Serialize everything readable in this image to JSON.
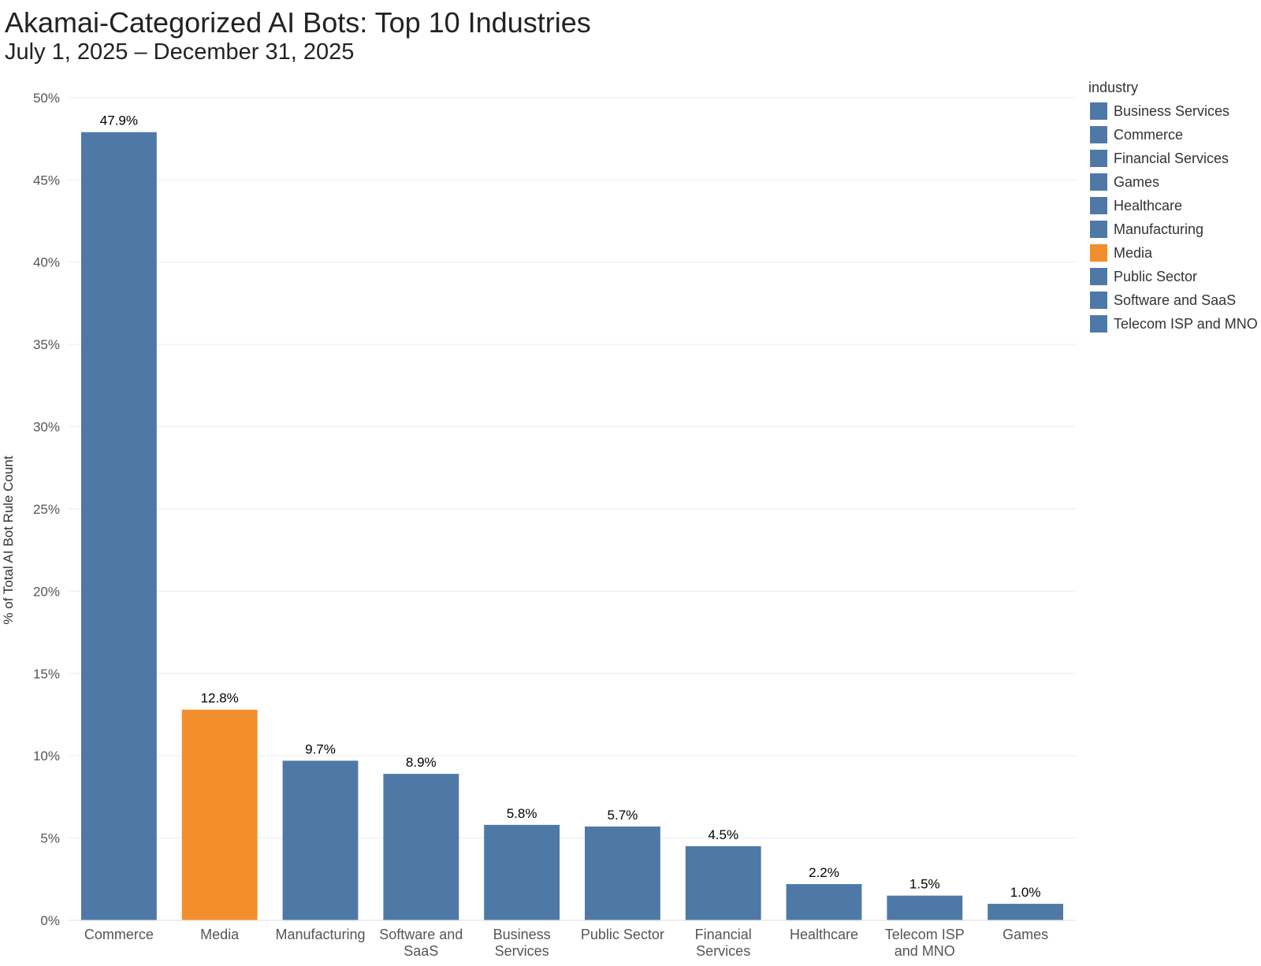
{
  "header": {
    "title": "Akamai-Categorized AI Bots: Top 10 Industries",
    "subtitle": "July 1, 2025 – December 31, 2025"
  },
  "colors": {
    "default": "#4e79a7",
    "highlight": "#f28e2b",
    "grid": "#ececec",
    "label": "#000000",
    "tick": "#555555"
  },
  "legend": {
    "title": "industry",
    "items": [
      {
        "label": "Business Services",
        "color": "#4e79a7"
      },
      {
        "label": "Commerce",
        "color": "#4e79a7"
      },
      {
        "label": "Financial Services",
        "color": "#4e79a7"
      },
      {
        "label": "Games",
        "color": "#4e79a7"
      },
      {
        "label": "Healthcare",
        "color": "#4e79a7"
      },
      {
        "label": "Manufacturing",
        "color": "#4e79a7"
      },
      {
        "label": "Media",
        "color": "#f28e2b"
      },
      {
        "label": "Public Sector",
        "color": "#4e79a7"
      },
      {
        "label": "Software and SaaS",
        "color": "#4e79a7"
      },
      {
        "label": "Telecom ISP and MNO",
        "color": "#4e79a7"
      }
    ]
  },
  "chart_data": {
    "type": "bar",
    "title": "Akamai-Categorized AI Bots: Top 10 Industries",
    "subtitle": "July 1, 2025 – December 31, 2025",
    "xlabel": "",
    "ylabel": "% of Total AI Bot Rule Count",
    "ylim": [
      0,
      51
    ],
    "yticks": [
      0,
      5,
      10,
      15,
      20,
      25,
      30,
      35,
      40,
      45,
      50
    ],
    "ytick_labels": [
      "0%",
      "5%",
      "10%",
      "15%",
      "20%",
      "25%",
      "30%",
      "35%",
      "40%",
      "45%",
      "50%"
    ],
    "grid": true,
    "legend_position": "right",
    "categories": [
      [
        "Commerce"
      ],
      [
        "Media"
      ],
      [
        "Manufacturing"
      ],
      [
        "Software and",
        "SaaS"
      ],
      [
        "Business",
        "Services"
      ],
      [
        "Public Sector"
      ],
      [
        "Financial",
        "Services"
      ],
      [
        "Healthcare"
      ],
      [
        "Telecom ISP",
        "and MNO"
      ],
      [
        "Games"
      ]
    ],
    "series": [
      {
        "name": "% of Total AI Bot Rule Count",
        "values": [
          47.9,
          12.8,
          9.7,
          8.9,
          5.8,
          5.7,
          4.5,
          2.2,
          1.5,
          1.0
        ],
        "data_labels": [
          "47.9%",
          "12.8%",
          "9.7%",
          "8.9%",
          "5.8%",
          "5.7%",
          "4.5%",
          "2.2%",
          "1.5%",
          "1.0%"
        ],
        "colors": [
          "#4e79a7",
          "#f28e2b",
          "#4e79a7",
          "#4e79a7",
          "#4e79a7",
          "#4e79a7",
          "#4e79a7",
          "#4e79a7",
          "#4e79a7",
          "#4e79a7"
        ]
      }
    ]
  }
}
